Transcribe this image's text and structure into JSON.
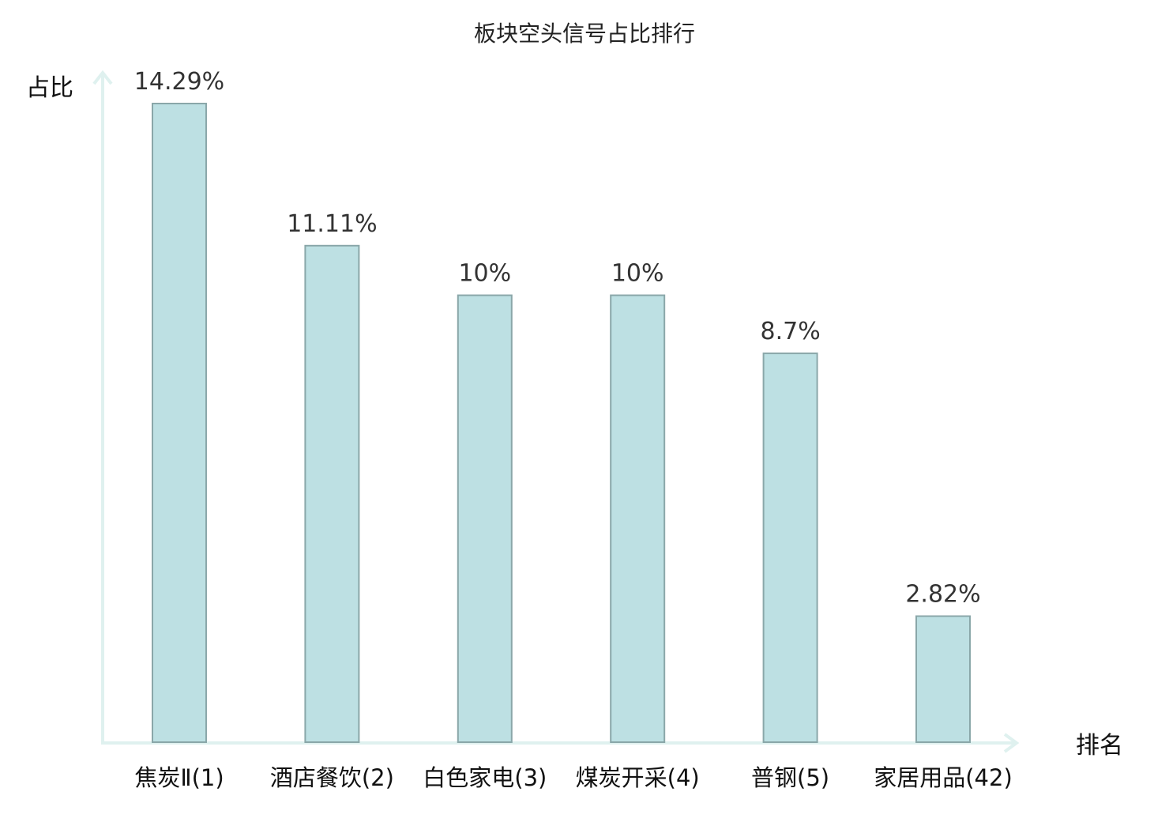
{
  "chart_data": {
    "type": "bar",
    "title": "板块空头信号占比排行",
    "xlabel": "排名",
    "ylabel": "占比",
    "categories": [
      "焦炭Ⅱ",
      "酒店餐饮",
      "白色家电",
      "煤炭开采",
      "普钢",
      "家居用品"
    ],
    "ranks": [
      "(1)",
      "(2)",
      "(3)",
      "(4)",
      "(5)",
      "(42)"
    ],
    "values": [
      14.29,
      11.11,
      10,
      10,
      8.7,
      2.82
    ],
    "value_labels": [
      "14.29%",
      "11.11%",
      "10%",
      "10%",
      "8.7%",
      "2.82%"
    ],
    "highlight_index": 5,
    "ylim": [
      0,
      15
    ],
    "grid": false,
    "legend": "none",
    "colors": {
      "bar_fill": "#bde0e3",
      "bar_stroke": "#8aa7a9",
      "axis": "#dff1ef",
      "highlight_text": "#e0191b",
      "text": "#111111",
      "value_text": "#333333"
    }
  }
}
